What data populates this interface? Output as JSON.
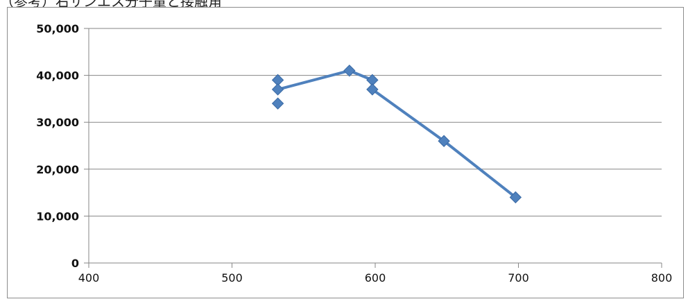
{
  "caption": "（参考）右サンエス分子量と接触角",
  "chart_data": {
    "type": "scatter",
    "title": "",
    "xlabel": "",
    "ylabel": "",
    "xlim": [
      400,
      800
    ],
    "ylim": [
      0,
      50000
    ],
    "x_ticks": [
      400,
      500,
      600,
      700,
      800
    ],
    "y_ticks": [
      0,
      10000,
      20000,
      30000,
      40000,
      50000
    ],
    "x_tick_labels": [
      "400",
      "500",
      "600",
      "700",
      "800"
    ],
    "y_tick_labels": [
      "0",
      "10,000",
      "20,000",
      "30,000",
      "40,000",
      "50,000"
    ],
    "grid": "horizontal",
    "legend": "none",
    "series": [
      {
        "color": "#4f81bd",
        "points": [
          {
            "x": 532,
            "y": 34000
          },
          {
            "x": 532,
            "y": 39000
          },
          {
            "x": 532,
            "y": 37000
          },
          {
            "x": 582,
            "y": 41000
          },
          {
            "x": 598,
            "y": 39000
          },
          {
            "x": 598,
            "y": 37000
          },
          {
            "x": 648,
            "y": 26000
          },
          {
            "x": 698,
            "y": 14000
          }
        ],
        "line_path": [
          {
            "x": 532,
            "y": 37000
          },
          {
            "x": 582,
            "y": 41000
          },
          {
            "x": 598,
            "y": 39000
          },
          {
            "x": 598,
            "y": 37000
          },
          {
            "x": 648,
            "y": 26000
          },
          {
            "x": 698,
            "y": 14000
          }
        ]
      }
    ]
  }
}
